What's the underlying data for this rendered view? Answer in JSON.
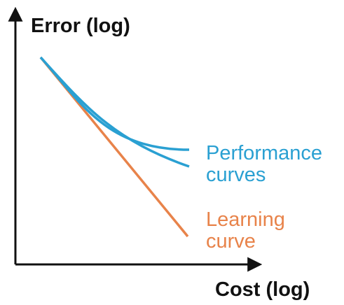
{
  "axes": {
    "y_label": "Error (log)",
    "x_label": "Cost (log)"
  },
  "annotations": [
    {
      "lines": [
        "Performance",
        "curves"
      ]
    },
    {
      "lines": [
        "Learning",
        "curve"
      ]
    }
  ]
}
